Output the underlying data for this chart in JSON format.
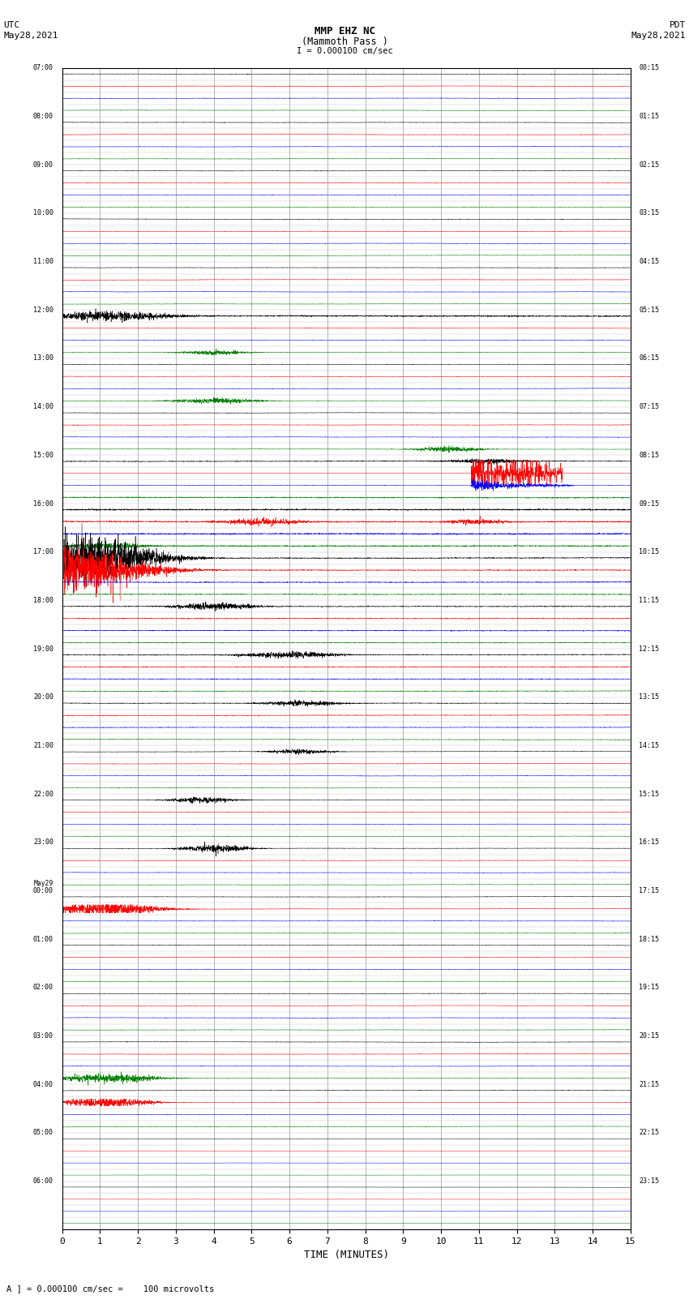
{
  "title_line1": "MMP EHZ NC",
  "title_line2": "(Mammoth Pass )",
  "title_line3": "I = 0.000100 cm/sec",
  "left_label_top": "UTC",
  "left_label_date": "May28,2021",
  "right_label_top": "PDT",
  "right_label_date": "May28,2021",
  "xlabel": "TIME (MINUTES)",
  "footnote": "A ] = 0.000100 cm/sec =    100 microvolts",
  "utc_labels": {
    "0": "07:00",
    "4": "08:00",
    "8": "09:00",
    "12": "10:00",
    "16": "11:00",
    "20": "12:00",
    "24": "13:00",
    "28": "14:00",
    "32": "15:00",
    "36": "16:00",
    "40": "17:00",
    "44": "18:00",
    "48": "19:00",
    "52": "20:00",
    "56": "21:00",
    "60": "22:00",
    "64": "23:00",
    "68": "00:00",
    "72": "01:00",
    "76": "02:00",
    "80": "03:00",
    "84": "04:00",
    "88": "05:00",
    "92": "06:00"
  },
  "may29_row": 68,
  "pdt_labels": {
    "0": "00:15",
    "4": "01:15",
    "8": "02:15",
    "12": "03:15",
    "16": "04:15",
    "20": "05:15",
    "24": "06:15",
    "28": "07:15",
    "32": "08:15",
    "36": "09:15",
    "40": "10:15",
    "44": "11:15",
    "48": "12:15",
    "52": "13:15",
    "56": "14:15",
    "60": "15:15",
    "64": "16:15",
    "68": "17:15",
    "72": "18:15",
    "76": "19:15",
    "80": "20:15",
    "84": "21:15",
    "88": "22:15",
    "92": "23:15"
  },
  "trace_colors": [
    "black",
    "red",
    "blue",
    "green"
  ],
  "bg_color": "#ffffff",
  "grid_color": "#999999",
  "num_rows": 96,
  "total_minutes": 15,
  "xlim": [
    0,
    15
  ],
  "xticks": [
    0,
    1,
    2,
    3,
    4,
    5,
    6,
    7,
    8,
    9,
    10,
    11,
    12,
    13,
    14,
    15
  ],
  "base_noise": 0.018,
  "row_scale": 0.38
}
